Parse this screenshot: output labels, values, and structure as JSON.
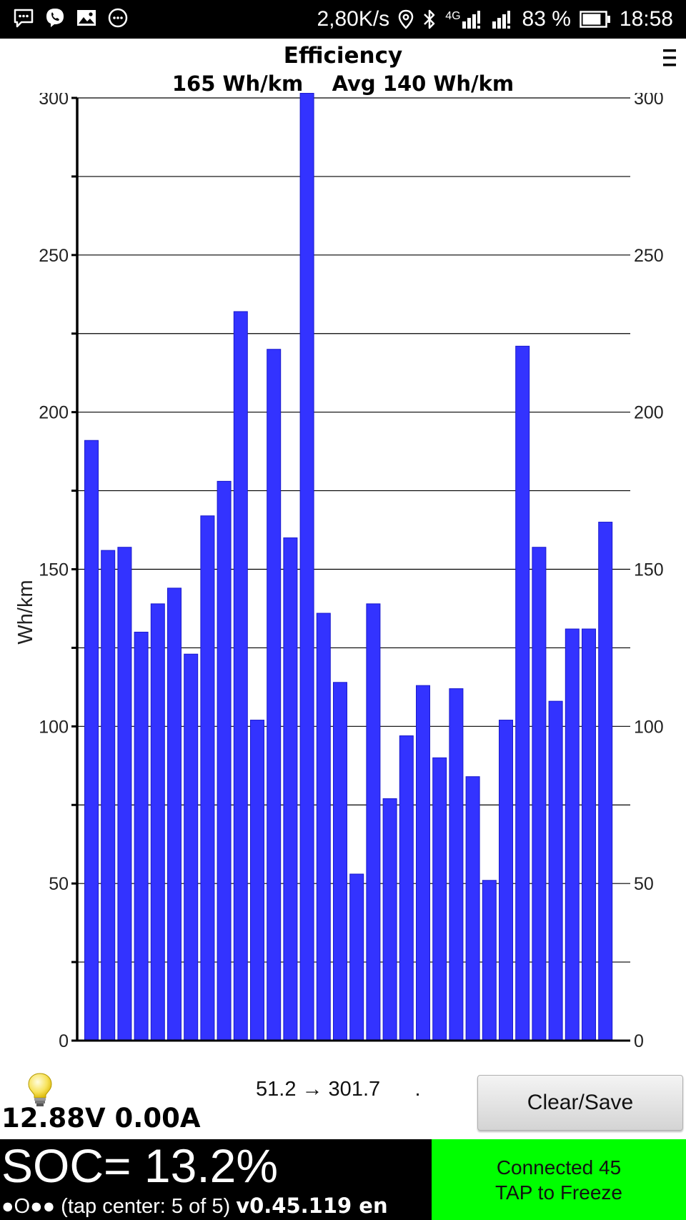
{
  "status_bar": {
    "left_icons": [
      "message-icon",
      "viber-icon",
      "image-icon",
      "more-icon"
    ],
    "speed": "2,80K/s",
    "network": "4G",
    "battery_percent": "83 %",
    "battery_level": 0.83,
    "time": "18:58"
  },
  "header": {
    "title": "Efficiency",
    "subtitle": "165 Wh/km    Avg 140 Wh/km",
    "menu_icon": "menu-icon"
  },
  "chart_data": {
    "type": "bar",
    "title": "Efficiency",
    "ylabel": "Wh/km",
    "xlabel": "",
    "ylim": [
      0,
      300
    ],
    "yticks": [
      0,
      50,
      100,
      150,
      200,
      250,
      300
    ],
    "grid": true,
    "bar_color": "#3333ff",
    "values": [
      191,
      156,
      157,
      130,
      139,
      144,
      123,
      167,
      178,
      232,
      102,
      220,
      160,
      302,
      136,
      114,
      53,
      139,
      77,
      97,
      113,
      90,
      112,
      84,
      51,
      102,
      221,
      157,
      108,
      131,
      131,
      165
    ]
  },
  "bottom": {
    "range_text": "51.2 → 301.7      .",
    "clear_button_label": "Clear/Save",
    "voltage_current": "12.88V 0.00A",
    "soc": "SOC= 13.2%",
    "status_line": "●O●● (tap center: 5 of 5) ",
    "version": "v0.45.119 en",
    "connected_line1": "Connected 45",
    "connected_line2": "TAP to Freeze"
  },
  "colors": {
    "accent_green": "#00ff00",
    "bar_blue": "#3333ff",
    "footer_black": "#000000"
  }
}
